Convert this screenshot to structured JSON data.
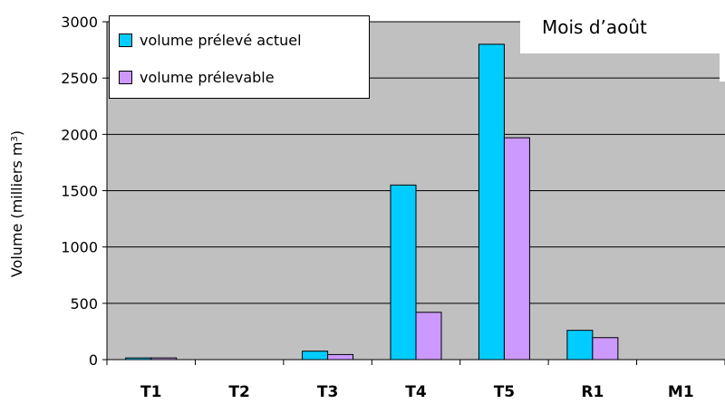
{
  "chart_data": {
    "type": "bar",
    "title": "Mois d’août",
    "xlabel": "",
    "ylabel": "Volume (milliers m3)",
    "ylabel_main": "Volume (milliers m",
    "ylabel_sup": "3",
    "ylabel_close": ")",
    "ylim": [
      0,
      3000
    ],
    "yticks": [
      0,
      500,
      1000,
      1500,
      2000,
      2500,
      3000
    ],
    "ytick_labels": [
      "0",
      "500",
      "1000",
      "1500",
      "2000",
      "2500",
      "3000"
    ],
    "grid": true,
    "legend_position": "top-left",
    "categories": [
      "T1",
      "T2",
      "T3",
      "T4",
      "T5",
      "R1",
      "M1"
    ],
    "series": [
      {
        "name": "volume prélevé actuel",
        "color": "#00ccff",
        "values": [
          15,
          0,
          75,
          1550,
          2800,
          260,
          0
        ]
      },
      {
        "name": "volume prélevable",
        "color": "#cc99ff",
        "values": [
          15,
          0,
          45,
          420,
          1970,
          195,
          0
        ]
      }
    ],
    "colors": {
      "plot_background": "#c0c0c0",
      "gridline": "#000000",
      "axis": "#000000",
      "bar_border": "#000000"
    }
  }
}
